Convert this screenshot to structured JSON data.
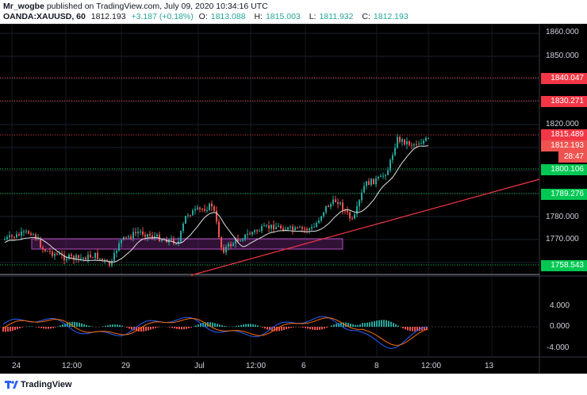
{
  "header": {
    "author": "Mr_wogbe",
    "published_text": "published on TradingView.com, July 09, 2020 10:34:16 UTC",
    "symbol": "OANDA:XAUUSD, 60",
    "last": "1812.193",
    "change": "+3.187 (+0.18%)",
    "open_label": "O:",
    "open": "1813.088",
    "high_label": "H:",
    "high": "1815.003",
    "low_label": "L:",
    "low": "1811.932",
    "close_label": "C:",
    "close": "1812.193"
  },
  "price_axis": {
    "ticks": [
      "1860.000",
      "1850.000",
      "1820.000",
      "1780.000",
      "1770.000"
    ],
    "oscillator_ticks": [
      "4.000",
      "0.000",
      "-4.000"
    ]
  },
  "price_tags": [
    {
      "label": "1840.047",
      "color": "#f23645"
    },
    {
      "label": "1830.271",
      "color": "#f23645"
    },
    {
      "label": "1815.489",
      "color": "#f23645"
    },
    {
      "label": "1812.193",
      "color": "#ef5350"
    },
    {
      "label": "28:47",
      "color": "#ef5350"
    },
    {
      "label": "1800.106",
      "color": "#00c853"
    },
    {
      "label": "1789.276",
      "color": "#00c853"
    },
    {
      "label": "1758.543",
      "color": "#00c853"
    }
  ],
  "time_axis": [
    "24",
    "12:00",
    "29",
    "Jul",
    "12:00",
    "6",
    "8",
    "12:00",
    "13"
  ],
  "footer": {
    "brand": "TradingView"
  },
  "colors": {
    "up": "#26a69a",
    "down": "#ef5350",
    "support": "#00c853",
    "resistance": "#f23645",
    "trendline": "#f23645",
    "zone": "#9c27b0"
  }
}
